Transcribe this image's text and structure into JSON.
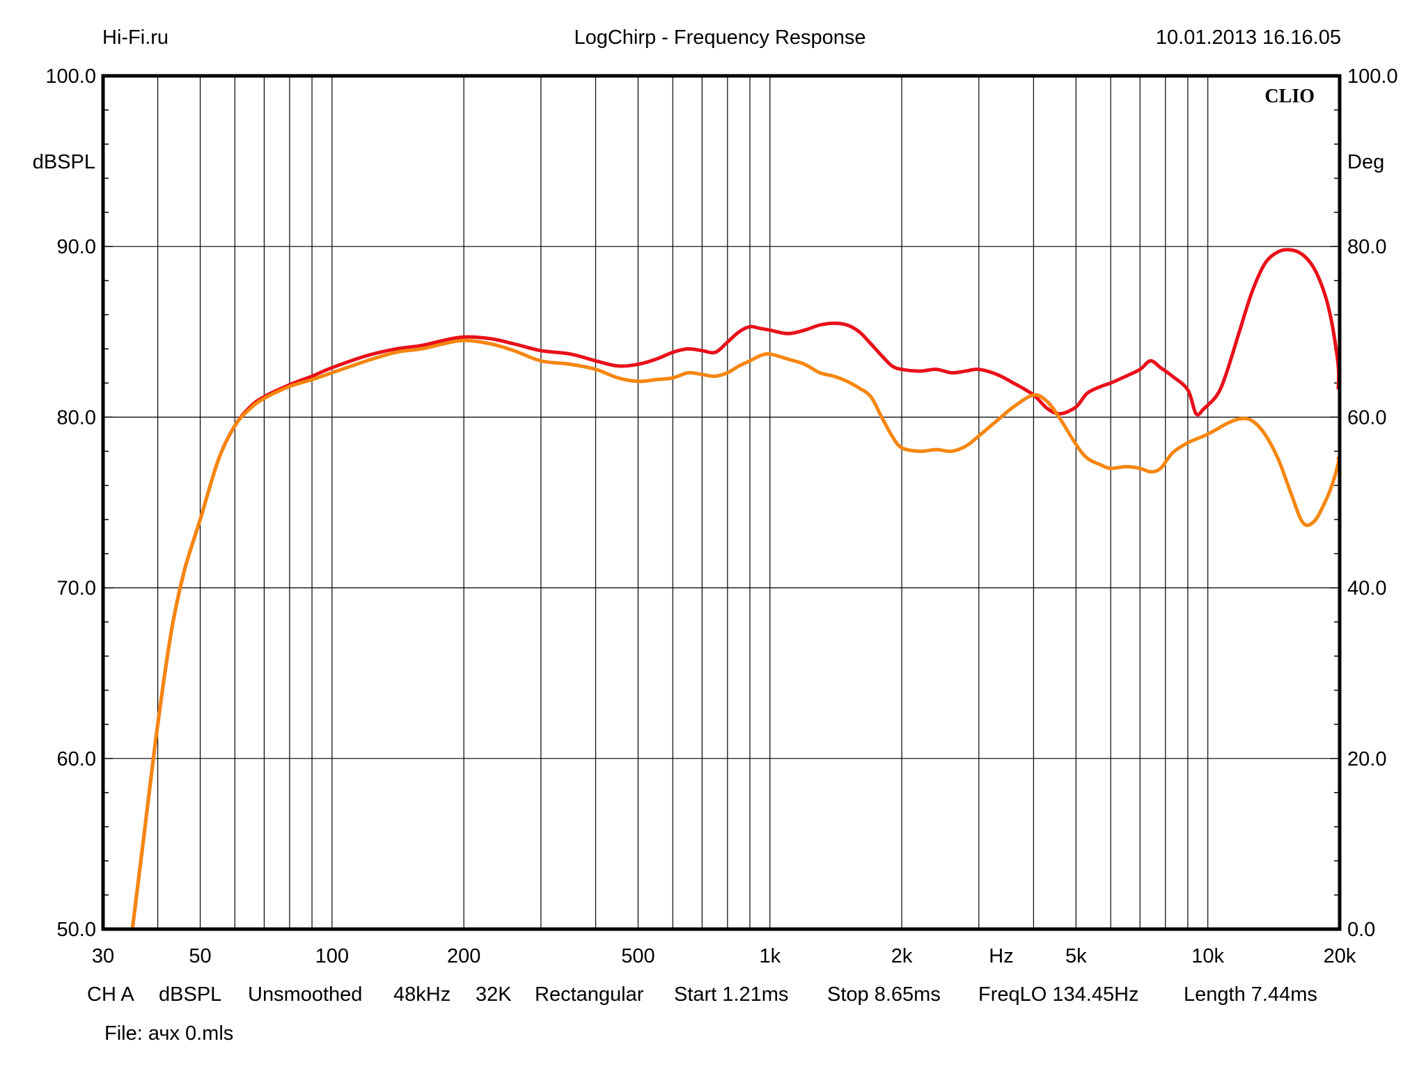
{
  "header": {
    "left": "Hi-Fi.ru",
    "center": "LogChirp - Frequency Response",
    "right": "10.01.2013 16.16.05"
  },
  "brand": "CLIO",
  "footer": {
    "settings": [
      "CH A",
      "dBSPL",
      "Unsmoothed",
      "48kHz",
      "32K",
      "Rectangular",
      "Start 1.21ms",
      "Stop 8.65ms",
      "FreqLO 134.45Hz",
      "Length 7.44ms"
    ],
    "file": "File: ачх 0.mls"
  },
  "colors": {
    "series_1": "#e8101a",
    "series_2": "#f5860f",
    "grid": "#000000"
  },
  "chart_data": {
    "type": "line",
    "x_scale": "log",
    "xlim": [
      30,
      20000
    ],
    "xlabel": "Hz",
    "x_tick_labels": [
      {
        "value": 30,
        "label": "30"
      },
      {
        "value": 50,
        "label": "50"
      },
      {
        "value": 100,
        "label": "100"
      },
      {
        "value": 200,
        "label": "200"
      },
      {
        "value": 500,
        "label": "500"
      },
      {
        "value": 1000,
        "label": "1k"
      },
      {
        "value": 2000,
        "label": "2k"
      },
      {
        "value": 5000,
        "label": "5k"
      },
      {
        "value": 10000,
        "label": "10k"
      },
      {
        "value": 20000,
        "label": "20k"
      }
    ],
    "ylabel_left": "dBSPL",
    "ylim_left": [
      50,
      100
    ],
    "y_ticks_left": [
      "100.0",
      "90.0",
      "80.0",
      "70.0",
      "60.0",
      "50.0"
    ],
    "ylabel_right": "Deg",
    "ylim_right": [
      0,
      100
    ],
    "y_ticks_right": [
      "100.0",
      "80.0",
      "60.0",
      "40.0",
      "20.0",
      "0.0"
    ],
    "grid": true,
    "series": [
      {
        "color": "#e8101a",
        "points": [
          [
            35,
            50
          ],
          [
            37,
            55
          ],
          [
            40,
            62
          ],
          [
            43,
            67.5
          ],
          [
            46,
            71
          ],
          [
            50,
            74
          ],
          [
            55,
            77.5
          ],
          [
            60,
            79.5
          ],
          [
            65,
            80.6
          ],
          [
            70,
            81.2
          ],
          [
            80,
            81.9
          ],
          [
            90,
            82.4
          ],
          [
            100,
            82.9
          ],
          [
            120,
            83.6
          ],
          [
            140,
            84.0
          ],
          [
            160,
            84.2
          ],
          [
            180,
            84.5
          ],
          [
            200,
            84.7
          ],
          [
            230,
            84.6
          ],
          [
            260,
            84.3
          ],
          [
            300,
            83.9
          ],
          [
            350,
            83.7
          ],
          [
            400,
            83.3
          ],
          [
            450,
            83.0
          ],
          [
            500,
            83.1
          ],
          [
            550,
            83.4
          ],
          [
            600,
            83.8
          ],
          [
            650,
            84.0
          ],
          [
            700,
            83.9
          ],
          [
            750,
            83.8
          ],
          [
            800,
            84.4
          ],
          [
            850,
            85.0
          ],
          [
            900,
            85.3
          ],
          [
            950,
            85.2
          ],
          [
            1000,
            85.1
          ],
          [
            1100,
            84.9
          ],
          [
            1200,
            85.1
          ],
          [
            1300,
            85.4
          ],
          [
            1400,
            85.5
          ],
          [
            1500,
            85.4
          ],
          [
            1600,
            85.0
          ],
          [
            1700,
            84.3
          ],
          [
            1800,
            83.6
          ],
          [
            1900,
            83.0
          ],
          [
            2000,
            82.8
          ],
          [
            2200,
            82.7
          ],
          [
            2400,
            82.8
          ],
          [
            2600,
            82.6
          ],
          [
            2800,
            82.7
          ],
          [
            3000,
            82.8
          ],
          [
            3300,
            82.5
          ],
          [
            3600,
            82.0
          ],
          [
            4000,
            81.3
          ],
          [
            4300,
            80.5
          ],
          [
            4600,
            80.2
          ],
          [
            5000,
            80.6
          ],
          [
            5300,
            81.4
          ],
          [
            5700,
            81.8
          ],
          [
            6000,
            82.0
          ],
          [
            6500,
            82.4
          ],
          [
            7000,
            82.8
          ],
          [
            7400,
            83.3
          ],
          [
            7800,
            82.9
          ],
          [
            8300,
            82.4
          ],
          [
            9000,
            81.6
          ],
          [
            9400,
            80.2
          ],
          [
            9800,
            80.5
          ],
          [
            10500,
            81.3
          ],
          [
            11000,
            82.5
          ],
          [
            11800,
            85.0
          ],
          [
            12600,
            87.3
          ],
          [
            13500,
            89.0
          ],
          [
            14500,
            89.7
          ],
          [
            15500,
            89.8
          ],
          [
            16500,
            89.5
          ],
          [
            17500,
            88.7
          ],
          [
            18500,
            87.2
          ],
          [
            19200,
            85.5
          ],
          [
            20000,
            83.0
          ],
          [
            20500,
            81.7
          ]
        ]
      },
      {
        "color": "#f5860f",
        "points": [
          [
            35,
            50
          ],
          [
            37,
            55
          ],
          [
            40,
            62
          ],
          [
            43,
            67.5
          ],
          [
            46,
            71
          ],
          [
            50,
            74
          ],
          [
            55,
            77.5
          ],
          [
            60,
            79.5
          ],
          [
            65,
            80.5
          ],
          [
            70,
            81.1
          ],
          [
            80,
            81.8
          ],
          [
            90,
            82.2
          ],
          [
            100,
            82.6
          ],
          [
            120,
            83.3
          ],
          [
            140,
            83.8
          ],
          [
            160,
            84.0
          ],
          [
            180,
            84.3
          ],
          [
            200,
            84.5
          ],
          [
            230,
            84.3
          ],
          [
            260,
            83.9
          ],
          [
            300,
            83.3
          ],
          [
            350,
            83.1
          ],
          [
            400,
            82.8
          ],
          [
            450,
            82.3
          ],
          [
            500,
            82.1
          ],
          [
            550,
            82.2
          ],
          [
            600,
            82.3
          ],
          [
            650,
            82.6
          ],
          [
            700,
            82.5
          ],
          [
            750,
            82.4
          ],
          [
            800,
            82.6
          ],
          [
            850,
            83.0
          ],
          [
            900,
            83.3
          ],
          [
            950,
            83.6
          ],
          [
            1000,
            83.7
          ],
          [
            1100,
            83.4
          ],
          [
            1200,
            83.1
          ],
          [
            1300,
            82.6
          ],
          [
            1400,
            82.4
          ],
          [
            1500,
            82.1
          ],
          [
            1600,
            81.7
          ],
          [
            1700,
            81.2
          ],
          [
            1800,
            80.0
          ],
          [
            1900,
            78.9
          ],
          [
            2000,
            78.2
          ],
          [
            2200,
            78.0
          ],
          [
            2400,
            78.1
          ],
          [
            2600,
            78.0
          ],
          [
            2800,
            78.3
          ],
          [
            3000,
            78.9
          ],
          [
            3300,
            79.8
          ],
          [
            3600,
            80.6
          ],
          [
            4000,
            81.3
          ],
          [
            4300,
            80.9
          ],
          [
            4600,
            79.9
          ],
          [
            5000,
            78.4
          ],
          [
            5300,
            77.6
          ],
          [
            5700,
            77.2
          ],
          [
            6000,
            77.0
          ],
          [
            6500,
            77.1
          ],
          [
            7000,
            77.0
          ],
          [
            7400,
            76.8
          ],
          [
            7800,
            77.0
          ],
          [
            8300,
            77.9
          ],
          [
            9000,
            78.5
          ],
          [
            9800,
            78.9
          ],
          [
            10500,
            79.3
          ],
          [
            11000,
            79.6
          ],
          [
            11800,
            79.9
          ],
          [
            12600,
            79.8
          ],
          [
            13500,
            79.0
          ],
          [
            14500,
            77.5
          ],
          [
            15500,
            75.5
          ],
          [
            16500,
            73.8
          ],
          [
            17500,
            73.9
          ],
          [
            18500,
            75.0
          ],
          [
            19200,
            76.0
          ],
          [
            20000,
            77.3
          ],
          [
            20500,
            77.6
          ]
        ]
      }
    ]
  }
}
